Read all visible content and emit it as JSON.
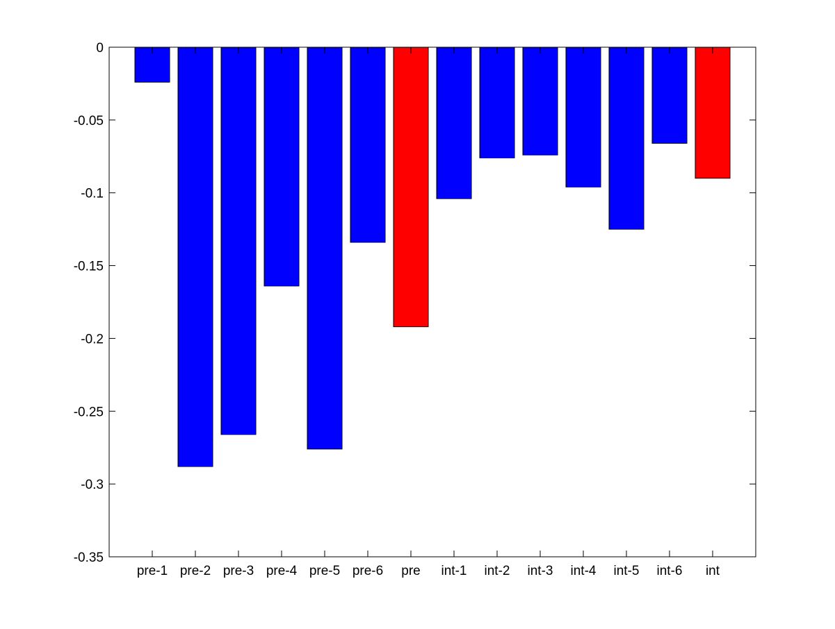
{
  "chart_data": {
    "type": "bar",
    "title": "",
    "xlabel": "",
    "ylabel": "",
    "categories": [
      "pre-1",
      "pre-2",
      "pre-3",
      "pre-4",
      "pre-5",
      "pre-6",
      "pre",
      "int-1",
      "int-2",
      "int-3",
      "int-4",
      "int-5",
      "int-6",
      "int"
    ],
    "values": [
      -0.024,
      -0.288,
      -0.266,
      -0.164,
      -0.276,
      -0.134,
      -0.192,
      -0.104,
      -0.076,
      -0.074,
      -0.096,
      -0.125,
      -0.066,
      -0.09
    ],
    "bar_colors": [
      "#0000ff",
      "#0000ff",
      "#0000ff",
      "#0000ff",
      "#0000ff",
      "#0000ff",
      "#ff0000",
      "#0000ff",
      "#0000ff",
      "#0000ff",
      "#0000ff",
      "#0000ff",
      "#0000ff",
      "#ff0000"
    ],
    "ylim": [
      -0.35,
      0
    ],
    "yticks": [
      0,
      -0.05,
      -0.1,
      -0.15,
      -0.2,
      -0.25,
      -0.3,
      -0.35
    ],
    "ytick_labels": [
      "0",
      "-0.05",
      "-0.1",
      "-0.15",
      "-0.2",
      "-0.25",
      "-0.3",
      "-0.35"
    ],
    "grid": false,
    "legend": "none"
  }
}
